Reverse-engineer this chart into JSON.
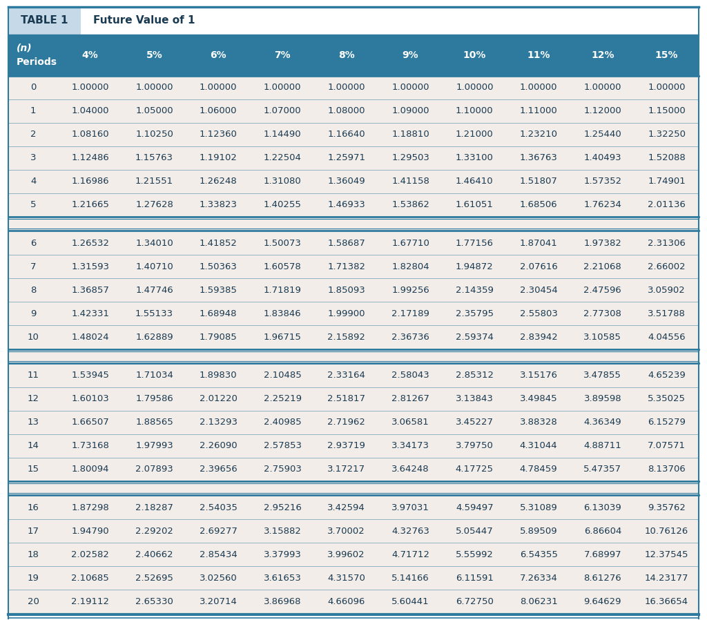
{
  "title_label": "TABLE 1",
  "title_text": "Future Value of 1",
  "col_headers": [
    "(n)\nPeriods",
    "4%",
    "5%",
    "6%",
    "7%",
    "8%",
    "9%",
    "10%",
    "11%",
    "12%",
    "15%"
  ],
  "rows": [
    [
      0,
      1.0,
      1.0,
      1.0,
      1.0,
      1.0,
      1.0,
      1.0,
      1.0,
      1.0,
      1.0
    ],
    [
      1,
      1.04,
      1.05,
      1.06,
      1.07,
      1.08,
      1.09,
      1.1,
      1.11,
      1.12,
      1.15
    ],
    [
      2,
      1.0816,
      1.1025,
      1.1236,
      1.1449,
      1.1664,
      1.1881,
      1.21,
      1.2321,
      1.2544,
      1.3225
    ],
    [
      3,
      1.12486,
      1.15763,
      1.19102,
      1.22504,
      1.25971,
      1.29503,
      1.331,
      1.36763,
      1.40493,
      1.52088
    ],
    [
      4,
      1.16986,
      1.21551,
      1.26248,
      1.3108,
      1.36049,
      1.41158,
      1.4641,
      1.51807,
      1.57352,
      1.74901
    ],
    [
      5,
      1.21665,
      1.27628,
      1.33823,
      1.40255,
      1.46933,
      1.53862,
      1.61051,
      1.68506,
      1.76234,
      2.01136
    ],
    [
      6,
      1.26532,
      1.3401,
      1.41852,
      1.50073,
      1.58687,
      1.6771,
      1.77156,
      1.87041,
      1.97382,
      2.31306
    ],
    [
      7,
      1.31593,
      1.4071,
      1.50363,
      1.60578,
      1.71382,
      1.82804,
      1.94872,
      2.07616,
      2.21068,
      2.66002
    ],
    [
      8,
      1.36857,
      1.47746,
      1.59385,
      1.71819,
      1.85093,
      1.99256,
      2.14359,
      2.30454,
      2.47596,
      3.05902
    ],
    [
      9,
      1.42331,
      1.55133,
      1.68948,
      1.83846,
      1.999,
      2.17189,
      2.35795,
      2.55803,
      2.77308,
      3.51788
    ],
    [
      10,
      1.48024,
      1.62889,
      1.79085,
      1.96715,
      2.15892,
      2.36736,
      2.59374,
      2.83942,
      3.10585,
      4.04556
    ],
    [
      11,
      1.53945,
      1.71034,
      1.8983,
      2.10485,
      2.33164,
      2.58043,
      2.85312,
      3.15176,
      3.47855,
      4.65239
    ],
    [
      12,
      1.60103,
      1.79586,
      2.0122,
      2.25219,
      2.51817,
      2.81267,
      3.13843,
      3.49845,
      3.89598,
      5.35025
    ],
    [
      13,
      1.66507,
      1.88565,
      2.13293,
      2.40985,
      2.71962,
      3.06581,
      3.45227,
      3.88328,
      4.36349,
      6.15279
    ],
    [
      14,
      1.73168,
      1.97993,
      2.2609,
      2.57853,
      2.93719,
      3.34173,
      3.7975,
      4.31044,
      4.88711,
      7.07571
    ],
    [
      15,
      1.80094,
      2.07893,
      2.39656,
      2.75903,
      3.17217,
      3.64248,
      4.17725,
      4.78459,
      5.47357,
      8.13706
    ],
    [
      16,
      1.87298,
      2.18287,
      2.54035,
      2.95216,
      3.42594,
      3.97031,
      4.59497,
      5.31089,
      6.13039,
      9.35762
    ],
    [
      17,
      1.9479,
      2.29202,
      2.69277,
      3.15882,
      3.70002,
      4.32763,
      5.05447,
      5.89509,
      6.86604,
      10.76126
    ],
    [
      18,
      2.02582,
      2.40662,
      2.85434,
      3.37993,
      3.99602,
      4.71712,
      5.55992,
      6.54355,
      7.68997,
      12.37545
    ],
    [
      19,
      2.10685,
      2.52695,
      3.0256,
      3.61653,
      4.3157,
      5.14166,
      6.11591,
      7.26334,
      8.61276,
      14.23177
    ],
    [
      20,
      2.19112,
      2.6533,
      3.20714,
      3.86968,
      4.66096,
      5.60441,
      6.7275,
      8.06231,
      9.64629,
      16.36654
    ]
  ],
  "group_breaks": [
    5,
    10,
    15
  ],
  "header_bg": "#2e7a9e",
  "title_box_bg": "#c5d9e8",
  "title_text_bg": "#ffffff",
  "row_bg": "#f2ede8",
  "separator_color": "#2e7a9e",
  "text_color_header": "#ffffff",
  "text_color_title_label": "#ffffff",
  "text_color_title": "#1a3a52",
  "text_color_data": "#1a3a52",
  "outer_border_color": "#2e7a9e",
  "fig_bg": "#ffffff",
  "title_font_size": 11,
  "header_font_size": 10,
  "data_font_size": 9.5
}
